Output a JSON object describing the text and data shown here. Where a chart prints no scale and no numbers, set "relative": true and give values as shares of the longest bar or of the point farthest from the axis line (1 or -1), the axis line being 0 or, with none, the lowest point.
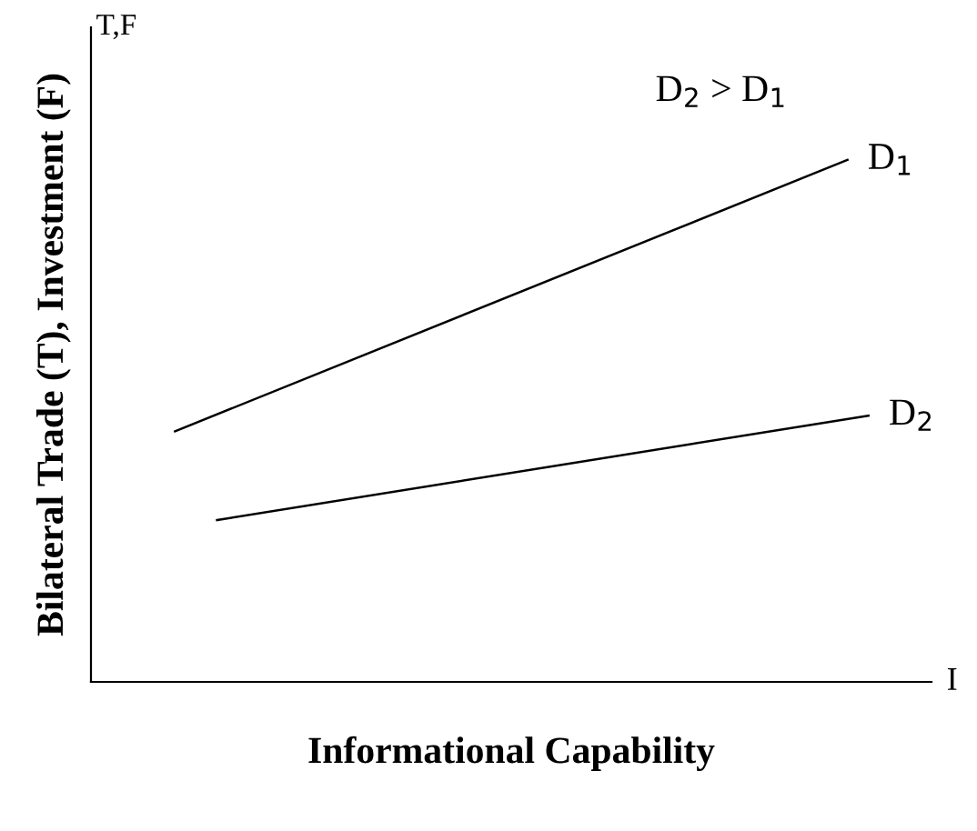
{
  "chart_data": {
    "type": "line",
    "relative": true,
    "xlabel": "Informational Capability",
    "ylabel": "Bilateral Trade (T), Investment (F)",
    "annotations": [
      "T,F",
      "I",
      "D$_{2}$ > D$_{1}$"
    ],
    "categories": [
      null,
      null,
      null,
      null,
      null,
      null,
      null,
      null,
      null,
      null,
      null,
      null,
      null,
      null,
      null,
      null,
      null,
      null,
      null,
      null,
      null,
      null,
      null,
      null,
      null,
      null,
      null,
      null,
      null,
      null,
      null,
      null,
      null,
      null,
      null,
      null,
      null,
      null,
      null,
      null,
      null
    ],
    "series": [
      {
        "name": "D$_{1}$",
        "color": "#000000",
        "values": [
          null,
          null,
          null,
          null,
          0.48,
          null,
          null,
          null,
          null,
          null,
          null,
          null,
          null,
          null,
          null,
          null,
          null,
          null,
          null,
          null,
          null,
          null,
          null,
          null,
          null,
          null,
          null,
          null,
          null,
          null,
          null,
          null,
          null,
          null,
          null,
          null,
          1,
          null,
          null,
          null,
          null
        ]
      },
      {
        "name": "D$_{2}$",
        "color": "#000000",
        "values": [
          null,
          null,
          null,
          null,
          null,
          null,
          0.31,
          null,
          null,
          null,
          null,
          null,
          null,
          null,
          null,
          null,
          null,
          null,
          null,
          null,
          null,
          null,
          null,
          null,
          null,
          null,
          null,
          null,
          null,
          null,
          null,
          null,
          null,
          null,
          null,
          null,
          null,
          0.51,
          null,
          null,
          null
        ]
      }
    ],
    "legend": false,
    "grid": false,
    "marker": "none",
    "line_style": "solid"
  }
}
